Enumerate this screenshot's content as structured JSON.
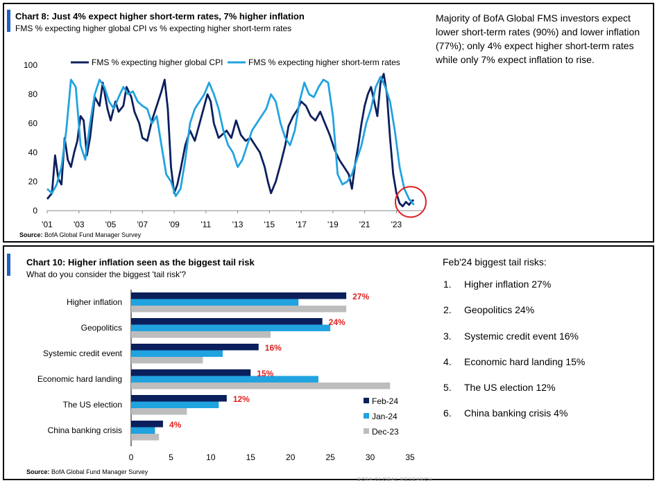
{
  "chart8": {
    "title": "Chart 8: Just 4% expect higher short-term rates, 7% higher inflation",
    "subtitle": "FMS % expecting higher global CPI vs % expecting higher short-term rates",
    "source_label": "Source:",
    "source_text": "BofA Global Fund Manager Survey",
    "commentary": "Majority of BofA Global FMS investors expect lower short-term rates (90%) and lower inflation (77%); only 4% expect higher short-term rates while only 7% expect inflation to rise.",
    "colors": {
      "cpi": "#0b1f5c",
      "rates": "#21a3e0",
      "highlight_circle": "#e02020"
    }
  },
  "chart10": {
    "title": "Chart 10: Higher inflation seen as the biggest tail risk",
    "subtitle": "What do you consider the biggest 'tail risk'?",
    "source_label": "Source:",
    "source_text": "BofA Global Fund Manager Survey",
    "colors": {
      "Feb-24": "#0b1f5c",
      "Jan-24": "#21a3e0",
      "Dec-23": "#bdbdbd",
      "label": "#e02020"
    }
  },
  "tail_risks": {
    "heading": "Feb'24 biggest tail risks:",
    "items": [
      {
        "num": "1.",
        "text": "Higher inflation 27%"
      },
      {
        "num": "2.",
        "text": "Geopolitics 24%"
      },
      {
        "num": "3.",
        "text": "Systemic credit event 16%"
      },
      {
        "num": "4.",
        "text": "Economic hard landing 15%"
      },
      {
        "num": "5.",
        "text": "The US election 12%"
      },
      {
        "num": "6.",
        "text": "China banking crisis 4%"
      }
    ]
  },
  "footer_mark": "BOFA GLOBAL RESEARCH",
  "chart_data": [
    {
      "type": "line",
      "xlabels": [
        "'01",
        "'03",
        "'05",
        "'07",
        "'09",
        "'11",
        "'13",
        "'15",
        "'17",
        "'19",
        "'21",
        "'23"
      ],
      "xlim": [
        2001,
        2024.6
      ],
      "ylim": [
        0,
        100
      ],
      "yticks": [
        0,
        20,
        40,
        60,
        80,
        100
      ],
      "legend_position": "top",
      "series": [
        {
          "name": "FMS % expecting higher global CPI",
          "color": "#0b1f5c",
          "x": [
            2001.0,
            2001.3,
            2001.5,
            2001.7,
            2001.9,
            2002.1,
            2002.3,
            2002.5,
            2002.7,
            2002.9,
            2003.1,
            2003.3,
            2003.5,
            2003.7,
            2004.0,
            2004.3,
            2004.5,
            2004.8,
            2005.0,
            2005.3,
            2005.5,
            2005.8,
            2006.0,
            2006.3,
            2006.5,
            2006.8,
            2007.0,
            2007.3,
            2007.6,
            2007.9,
            2008.2,
            2008.4,
            2008.6,
            2008.8,
            2009.0,
            2009.2,
            2009.4,
            2009.7,
            2010.0,
            2010.3,
            2010.6,
            2010.9,
            2011.1,
            2011.3,
            2011.5,
            2011.8,
            2012.0,
            2012.3,
            2012.6,
            2012.9,
            2013.2,
            2013.5,
            2013.8,
            2014.1,
            2014.4,
            2014.7,
            2014.9,
            2015.1,
            2015.4,
            2015.7,
            2016.0,
            2016.2,
            2016.5,
            2016.8,
            2017.0,
            2017.3,
            2017.6,
            2017.9,
            2018.2,
            2018.5,
            2018.8,
            2019.1,
            2019.4,
            2019.7,
            2020.0,
            2020.2,
            2020.4,
            2020.6,
            2020.8,
            2021.0,
            2021.2,
            2021.4,
            2021.6,
            2021.8,
            2022.0,
            2022.2,
            2022.4,
            2022.6,
            2022.8,
            2023.0,
            2023.2,
            2023.4,
            2023.6,
            2023.8,
            2024.0,
            2024.1
          ],
          "y": [
            8,
            12,
            38,
            22,
            18,
            50,
            35,
            30,
            40,
            48,
            65,
            62,
            38,
            50,
            78,
            72,
            88,
            70,
            62,
            75,
            68,
            72,
            85,
            78,
            68,
            60,
            50,
            48,
            62,
            72,
            82,
            90,
            70,
            30,
            12,
            18,
            28,
            45,
            55,
            48,
            60,
            72,
            80,
            75,
            60,
            50,
            52,
            55,
            50,
            62,
            52,
            48,
            50,
            45,
            40,
            30,
            20,
            12,
            20,
            32,
            45,
            58,
            65,
            70,
            75,
            72,
            65,
            62,
            68,
            60,
            52,
            42,
            35,
            30,
            25,
            15,
            32,
            45,
            60,
            72,
            80,
            85,
            75,
            65,
            88,
            94,
            80,
            50,
            25,
            12,
            5,
            3,
            6,
            4,
            7,
            7
          ]
        },
        {
          "name": "FMS % expecting higher short-term rates",
          "color": "#21a3e0",
          "x": [
            2001.0,
            2001.3,
            2001.6,
            2001.9,
            2002.2,
            2002.5,
            2002.8,
            2003.1,
            2003.4,
            2003.7,
            2004.0,
            2004.3,
            2004.6,
            2004.9,
            2005.2,
            2005.5,
            2005.8,
            2006.1,
            2006.4,
            2006.7,
            2007.0,
            2007.3,
            2007.6,
            2007.9,
            2008.2,
            2008.5,
            2008.8,
            2009.1,
            2009.4,
            2009.7,
            2010.0,
            2010.3,
            2010.6,
            2010.9,
            2011.2,
            2011.5,
            2011.8,
            2012.1,
            2012.4,
            2012.7,
            2013.0,
            2013.3,
            2013.6,
            2013.9,
            2014.2,
            2014.5,
            2014.8,
            2015.1,
            2015.4,
            2015.7,
            2016.0,
            2016.3,
            2016.6,
            2016.9,
            2017.2,
            2017.5,
            2017.8,
            2018.1,
            2018.4,
            2018.7,
            2019.0,
            2019.3,
            2019.6,
            2019.9,
            2020.2,
            2020.5,
            2020.8,
            2021.1,
            2021.4,
            2021.7,
            2022.0,
            2022.3,
            2022.6,
            2022.9,
            2023.2,
            2023.5,
            2023.8,
            2024.1
          ],
          "y": [
            15,
            12,
            18,
            30,
            55,
            90,
            85,
            45,
            35,
            60,
            80,
            90,
            85,
            75,
            70,
            78,
            85,
            80,
            82,
            75,
            72,
            70,
            60,
            65,
            45,
            25,
            20,
            10,
            15,
            35,
            60,
            70,
            75,
            80,
            88,
            80,
            70,
            55,
            45,
            40,
            30,
            35,
            45,
            55,
            60,
            65,
            70,
            80,
            75,
            60,
            50,
            45,
            55,
            75,
            88,
            80,
            78,
            85,
            90,
            88,
            65,
            25,
            18,
            20,
            25,
            35,
            45,
            60,
            70,
            85,
            92,
            85,
            75,
            55,
            30,
            15,
            8,
            4
          ]
        }
      ],
      "annotation": "red circle highlighting latest readings (late 2023 - early 2024)"
    },
    {
      "type": "bar",
      "orientation": "horizontal",
      "categories": [
        "Higher inflation",
        "Geopolitics",
        "Systemic credit event",
        "Economic hard landing",
        "The US election",
        "China banking crisis"
      ],
      "series": [
        {
          "name": "Feb-24",
          "values": [
            27,
            24,
            16,
            15,
            12,
            4
          ]
        },
        {
          "name": "Jan-24",
          "values": [
            21,
            25,
            11.5,
            23.5,
            11,
            3
          ]
        },
        {
          "name": "Dec-23",
          "values": [
            27,
            17.5,
            9,
            32.5,
            7,
            3.5
          ]
        }
      ],
      "data_labels": [
        "27%",
        "24%",
        "16%",
        "15%",
        "12%",
        "4%"
      ],
      "xlim": [
        0,
        35
      ],
      "xticks": [
        0,
        5,
        10,
        15,
        20,
        25,
        30,
        35
      ],
      "legend_position": "bottom-right"
    }
  ]
}
